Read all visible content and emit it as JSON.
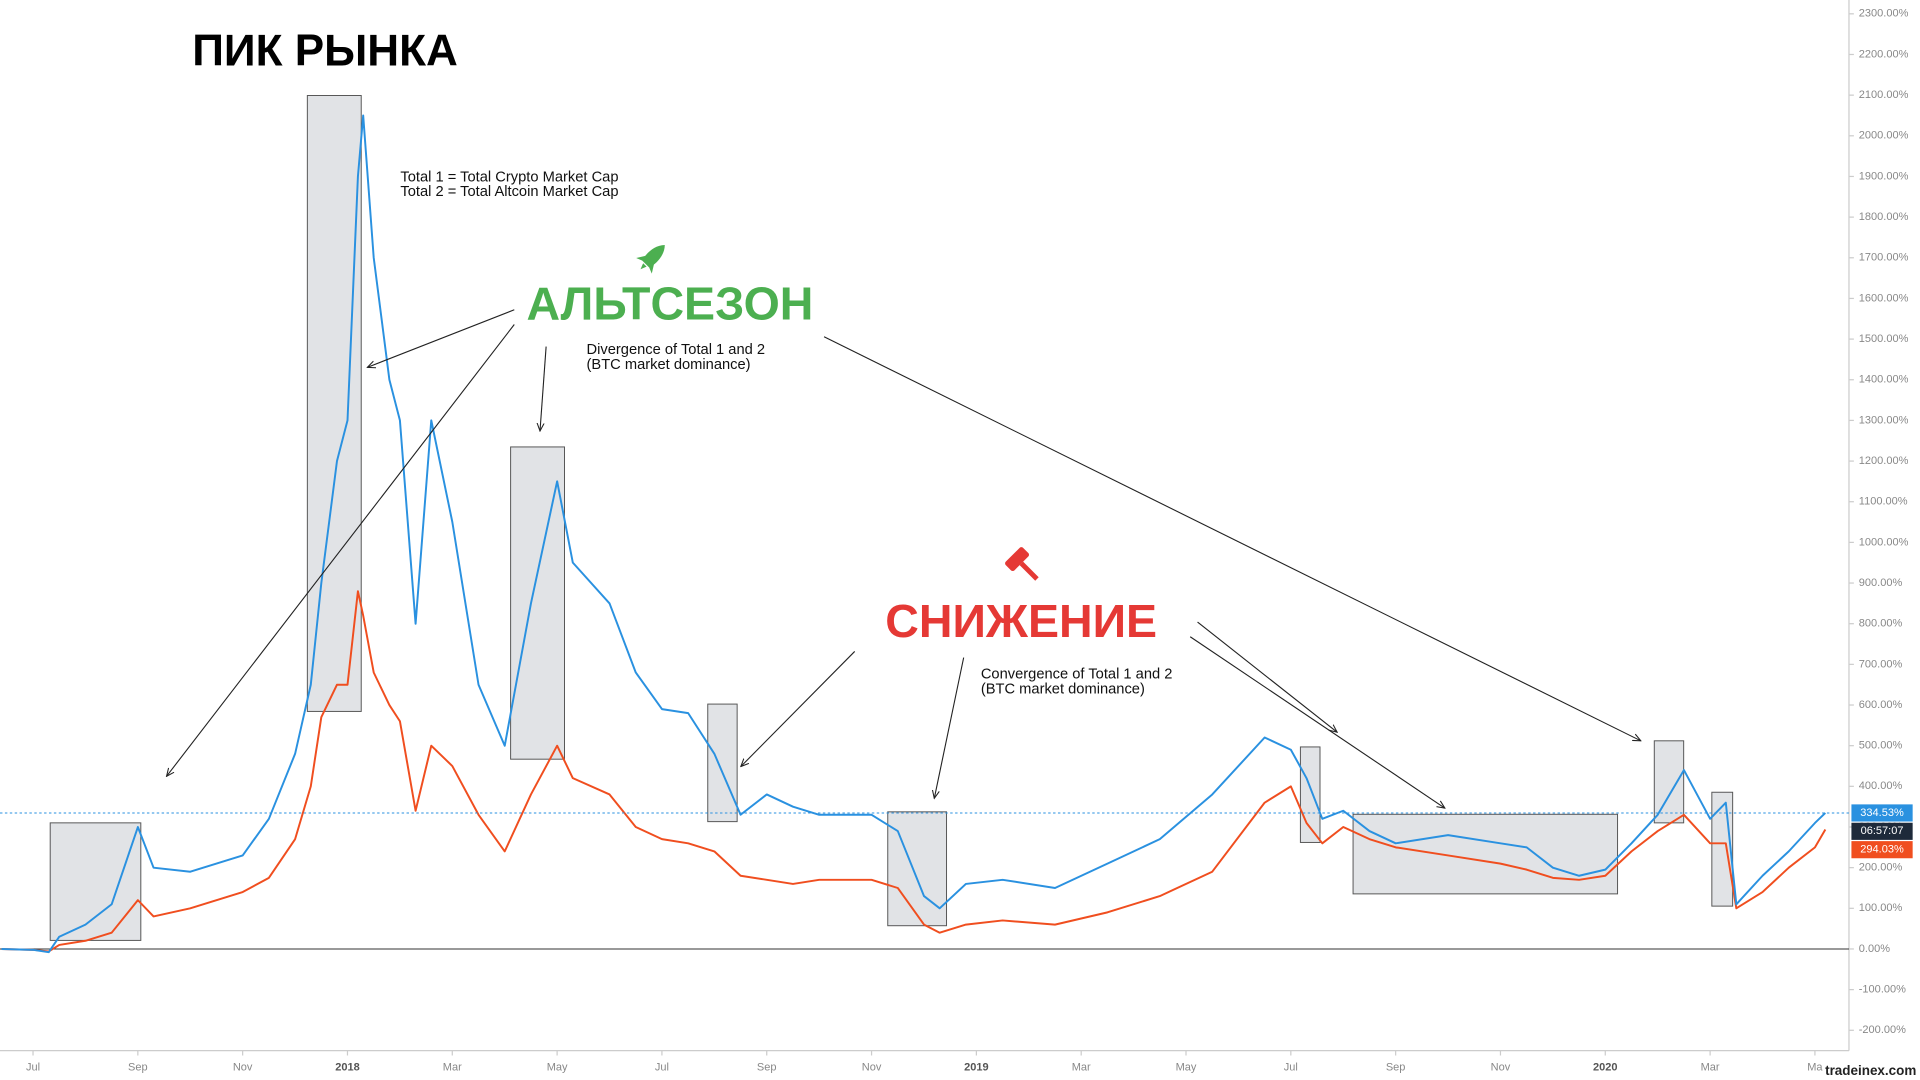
{
  "chart_data": {
    "type": "line",
    "headline": "ПИК РЫНКА",
    "altseason": "АЛЬТСЕЗОН",
    "decline": "СНИЖЕНИЕ",
    "notes": [
      "Total 1 = Total Crypto Market Cap",
      "Total 2 = Total Altcoin Market Cap"
    ],
    "divergence": [
      "Divergence of Total 1 and 2",
      "(BTC market dominance)"
    ],
    "convergence": [
      "Convergence of Total 1 and 2",
      "(BTC market dominance)"
    ],
    "watermark": "tradeinex.com",
    "x": [
      -0.6,
      0,
      0.3,
      0.5,
      1.0,
      1.5,
      2.0,
      2.3,
      3,
      4,
      4.5,
      5,
      5.3,
      5.5,
      5.8,
      6.0,
      6.2,
      6.3,
      6.5,
      6.8,
      7.0,
      7.3,
      7.6,
      8.0,
      8.5,
      9.0,
      9.5,
      10.0,
      10.3,
      11,
      11.5,
      12,
      12.5,
      13,
      13.5,
      14,
      14.5,
      15,
      16,
      16.5,
      17,
      17.3,
      17.8,
      18.5,
      19.5,
      20.5,
      21.5,
      22.5,
      23.5,
      24,
      24.3,
      24.6,
      25,
      25.5,
      26,
      27,
      28,
      28.5,
      29,
      29.5,
      30,
      30.5,
      31,
      31.5,
      32,
      32.3,
      32.5,
      33,
      33.5,
      34,
      34.2
    ],
    "series": [
      {
        "color": "#2a91e0",
        "values": [
          0,
          -2,
          -8,
          30,
          60,
          110,
          300,
          200,
          190,
          230,
          320,
          480,
          650,
          900,
          1200,
          1300,
          1900,
          2050,
          1700,
          1400,
          1300,
          800,
          1300,
          1050,
          650,
          500,
          850,
          1150,
          950,
          850,
          680,
          590,
          580,
          480,
          330,
          380,
          350,
          330,
          330,
          290,
          130,
          100,
          160,
          170,
          150,
          210,
          270,
          380,
          520,
          490,
          420,
          320,
          340,
          290,
          260,
          280,
          260,
          250,
          200,
          180,
          195,
          260,
          330,
          440,
          320,
          360,
          110,
          180,
          240,
          310,
          334.53
        ]
      },
      {
        "color": "#f04e1f",
        "values": [
          0,
          -2,
          -6,
          10,
          20,
          40,
          120,
          80,
          100,
          140,
          175,
          270,
          400,
          570,
          650,
          650,
          880,
          820,
          680,
          600,
          560,
          340,
          500,
          450,
          330,
          240,
          380,
          500,
          420,
          380,
          300,
          270,
          260,
          240,
          180,
          170,
          160,
          170,
          170,
          150,
          60,
          40,
          60,
          70,
          60,
          90,
          130,
          190,
          360,
          400,
          310,
          260,
          300,
          270,
          250,
          230,
          210,
          195,
          175,
          170,
          180,
          240,
          290,
          330,
          260,
          260,
          100,
          140,
          200,
          250,
          294.03
        ]
      }
    ],
    "xlim": [
      -0.63,
      34.65
    ],
    "ylim": [
      -250,
      2334
    ],
    "xticks": [
      {
        "value": 0,
        "label": "Jul"
      },
      {
        "value": 2,
        "label": "Sep"
      },
      {
        "value": 4,
        "label": "Nov"
      },
      {
        "value": 6,
        "label": "2018"
      },
      {
        "value": 8,
        "label": "Mar"
      },
      {
        "value": 10,
        "label": "May"
      },
      {
        "value": 12,
        "label": "Jul"
      },
      {
        "value": 14,
        "label": "Sep"
      },
      {
        "value": 16,
        "label": "Nov"
      },
      {
        "value": 18,
        "label": "2019"
      },
      {
        "value": 20,
        "label": "Mar"
      },
      {
        "value": 22,
        "label": "May"
      },
      {
        "value": 24,
        "label": "Jul"
      },
      {
        "value": 26,
        "label": "Sep"
      },
      {
        "value": 28,
        "label": "Nov"
      },
      {
        "value": 30,
        "label": "2020"
      },
      {
        "value": 32,
        "label": "Mar"
      },
      {
        "value": 34,
        "label": "Ma"
      }
    ],
    "yticks": [
      {
        "value": -200,
        "label": "-200.00%"
      },
      {
        "value": -100,
        "label": "-100.00%"
      },
      {
        "value": 0,
        "label": "0.00%"
      },
      {
        "value": 100,
        "label": "100.00%"
      },
      {
        "value": 200,
        "label": "200.00%"
      },
      {
        "value": 300,
        "label": "300.00%"
      },
      {
        "value": 400,
        "label": "400.00%"
      },
      {
        "value": 500,
        "label": "500.00%"
      },
      {
        "value": 600,
        "label": "600.00%"
      },
      {
        "value": 700,
        "label": "700.00%"
      },
      {
        "value": 800,
        "label": "800.00%"
      },
      {
        "value": 900,
        "label": "900.00%"
      },
      {
        "value": 1000,
        "label": "1000.00%"
      },
      {
        "value": 1100,
        "label": "1100.00%"
      },
      {
        "value": 1200,
        "label": "1200.00%"
      },
      {
        "value": 1300,
        "label": "1300.00%"
      },
      {
        "value": 1400,
        "label": "1400.00%"
      },
      {
        "value": 1500,
        "label": "1500.00%"
      },
      {
        "value": 1600,
        "label": "1600.00%"
      },
      {
        "value": 1700,
        "label": "1700.00%"
      },
      {
        "value": 1800,
        "label": "1800.00%"
      },
      {
        "value": 1900,
        "label": "1900.00%"
      },
      {
        "value": 2000,
        "label": "2000.00%"
      },
      {
        "value": 2100,
        "label": "2100.00%"
      },
      {
        "value": 2200,
        "label": "2200.00%"
      },
      {
        "value": 2300,
        "label": "2300.00%"
      }
    ],
    "markers": [
      {
        "value": 334.53,
        "label": "334.53%",
        "color": "#2a91e0"
      },
      {
        "value": 294.03,
        "label": "294.03%",
        "color": "#f04e1f"
      }
    ],
    "countdown": "06:57:07"
  }
}
